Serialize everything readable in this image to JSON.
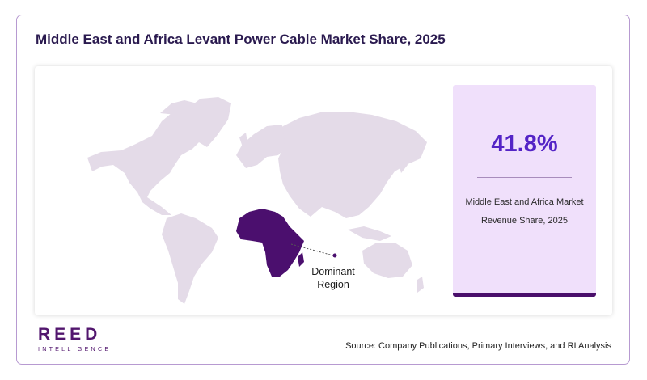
{
  "title": "Middle East and Africa Levant Power Cable Market Share, 2025",
  "stat": {
    "value": "41.8%",
    "label_line1": "Middle East and Africa Market",
    "label_line2": "Revenue Share, 2025"
  },
  "map": {
    "highlighted_region": "Africa",
    "callout_line1": "Dominant",
    "callout_line2": "Region",
    "land_color": "#e4dbe8",
    "highlight_color": "#4b0f6e"
  },
  "brand": {
    "name": "REED",
    "tagline": "INTELLIGENCE",
    "color": "#52166e"
  },
  "source": "Source: Company Publications, Primary Interviews, and RI Analysis"
}
